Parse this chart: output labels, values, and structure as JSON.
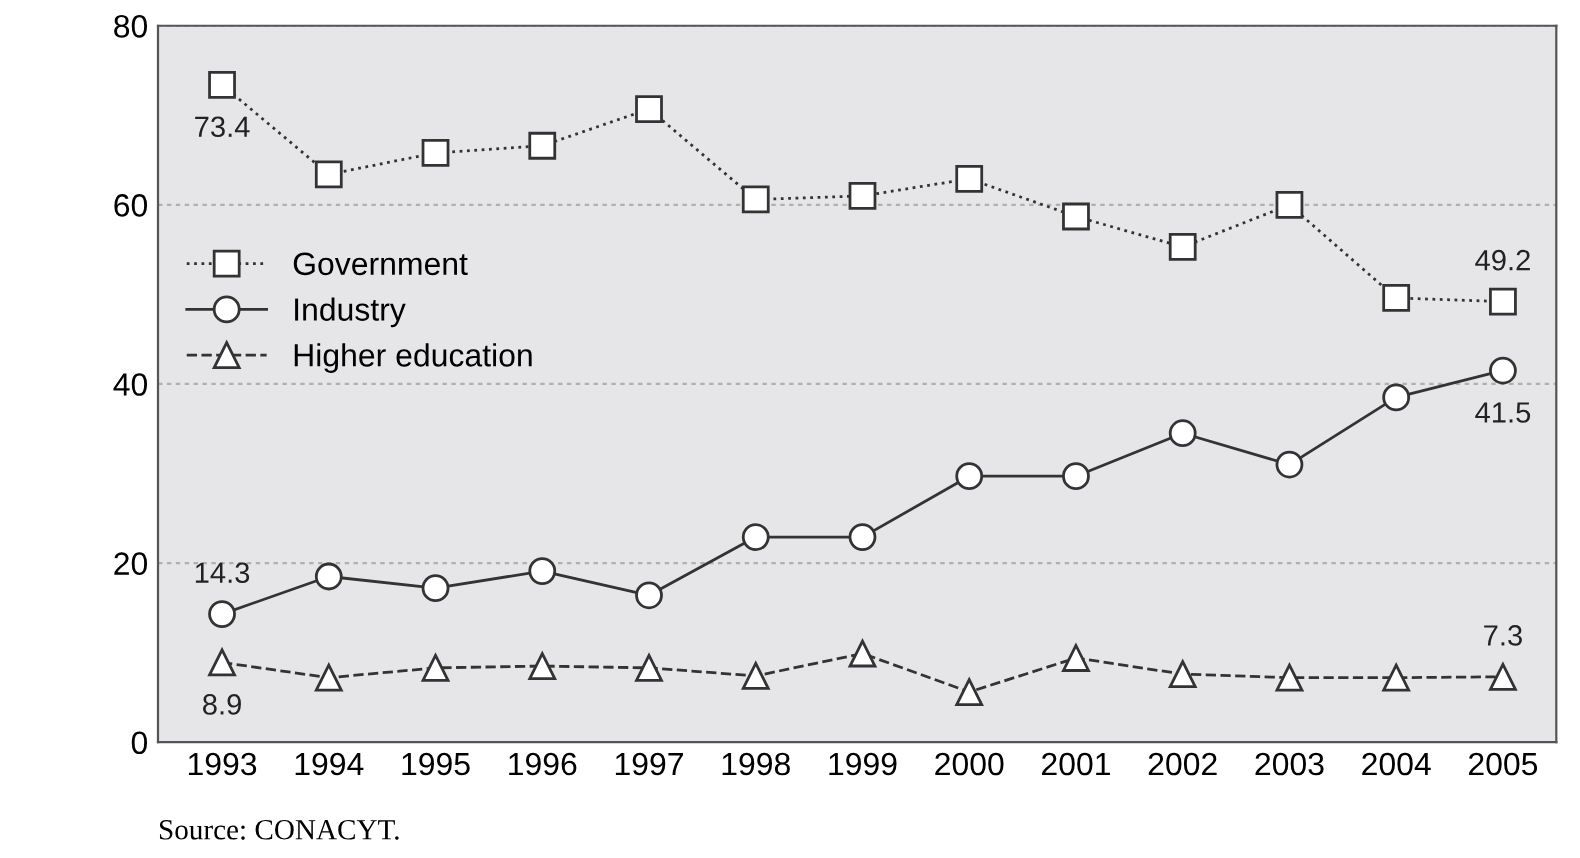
{
  "chart_data": {
    "type": "line",
    "categories": [
      "1993",
      "1994",
      "1995",
      "1996",
      "1997",
      "1998",
      "1999",
      "2000",
      "2001",
      "2002",
      "2003",
      "2004",
      "2005"
    ],
    "series": [
      {
        "name": "Government",
        "color": "#333333",
        "marker": "square",
        "line_style": "dotted",
        "values": [
          73.4,
          63.4,
          65.8,
          66.6,
          70.7,
          60.6,
          61.0,
          62.9,
          58.7,
          55.3,
          60.0,
          49.6,
          49.2
        ],
        "value_labels": [
          "73.4",
          null,
          null,
          null,
          null,
          null,
          null,
          null,
          null,
          null,
          null,
          null,
          "49.2"
        ]
      },
      {
        "name": "Industry",
        "color": "#333333",
        "marker": "circle",
        "line_style": "solid",
        "values": [
          14.3,
          18.5,
          17.2,
          19.1,
          16.4,
          22.9,
          22.9,
          29.7,
          29.7,
          34.5,
          31.0,
          38.5,
          41.5
        ],
        "value_labels": [
          "14.3",
          null,
          null,
          null,
          null,
          null,
          null,
          null,
          null,
          null,
          null,
          null,
          "41.5"
        ]
      },
      {
        "name": "Higher education",
        "color": "#333333",
        "marker": "triangle",
        "line_style": "dashed",
        "values": [
          8.9,
          7.2,
          8.3,
          8.5,
          8.3,
          7.4,
          9.9,
          5.6,
          9.4,
          7.6,
          7.2,
          7.2,
          7.3
        ],
        "value_labels": [
          "8.9",
          null,
          null,
          null,
          null,
          null,
          null,
          null,
          null,
          null,
          null,
          null,
          "7.3"
        ]
      }
    ],
    "ylim": [
      0,
      80
    ],
    "yticks": [
      0,
      20,
      40,
      60,
      80
    ],
    "grid": "y",
    "legend": "left",
    "annotations": [
      "Source: CONACYT."
    ]
  }
}
